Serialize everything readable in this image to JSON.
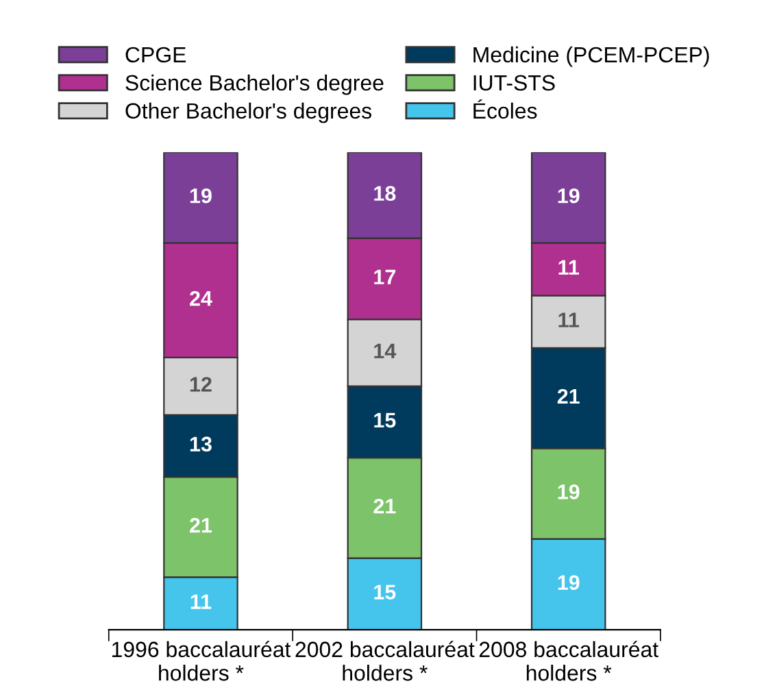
{
  "chart_data": {
    "type": "bar",
    "stacked": true,
    "data_labels": true,
    "legend": "top",
    "grid": false,
    "categories": [
      "1996 baccalauréat\nholders *",
      "2002 baccalauréat\nholders *",
      "2008 baccalauréat\nholders *"
    ],
    "series": [
      {
        "name": "Écoles",
        "color": "#45c4ec",
        "values": [
          11,
          15,
          19
        ]
      },
      {
        "name": "IUT-STS",
        "color": "#7cc36a",
        "values": [
          21,
          21,
          19
        ]
      },
      {
        "name": "Medicine (PCEM-PCEP)",
        "color": "#003a5c",
        "values": [
          13,
          15,
          21
        ]
      },
      {
        "name": "Other Bachelor's degrees",
        "color": "#d4d4d4",
        "values": [
          12,
          14,
          11
        ]
      },
      {
        "name": "Science Bachelor's degree",
        "color": "#b0308f",
        "values": [
          24,
          17,
          11
        ]
      },
      {
        "name": "CPGE",
        "color": "#7b3f98",
        "values": [
          19,
          18,
          19
        ]
      }
    ]
  }
}
